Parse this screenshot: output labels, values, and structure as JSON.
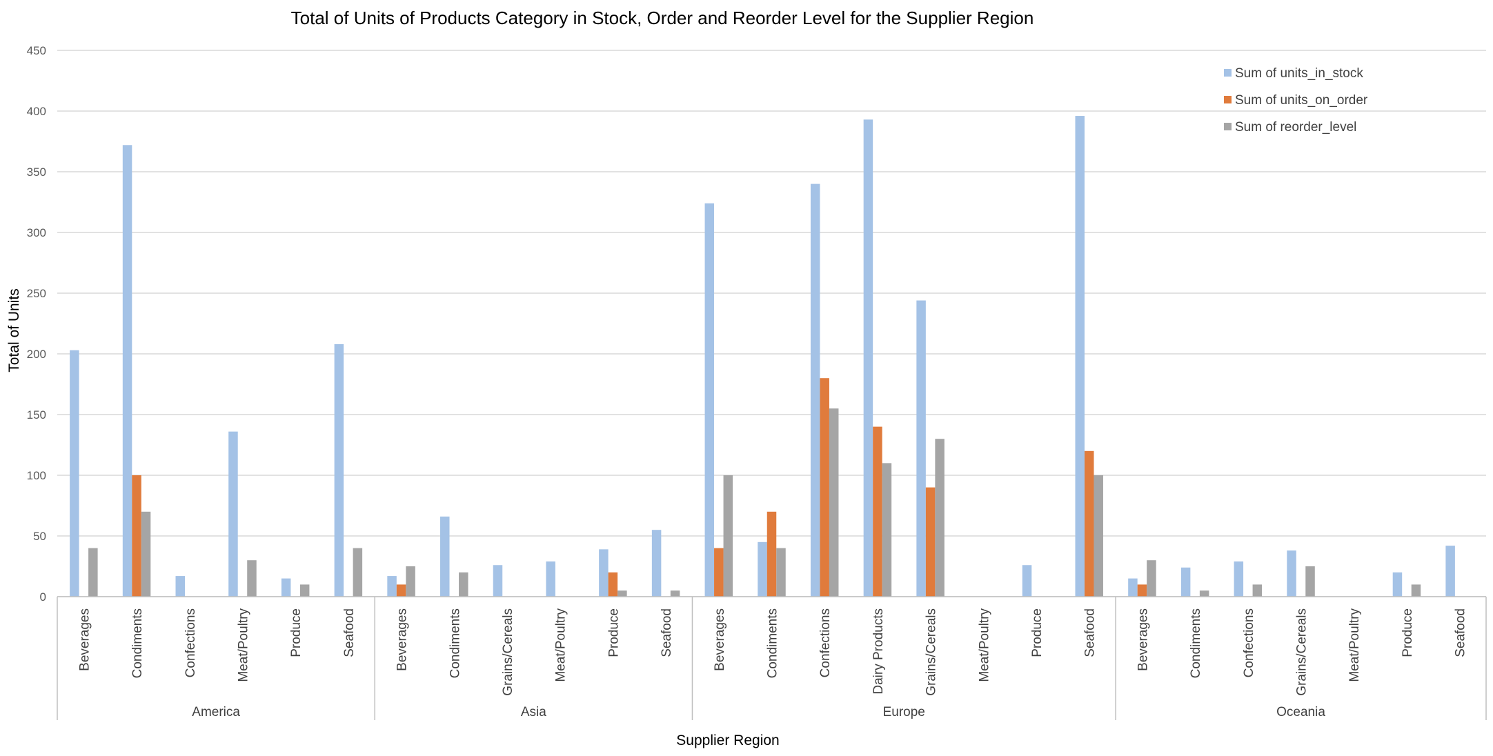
{
  "chart_data": {
    "type": "bar",
    "title": "Total of Units of Products Category in Stock, Order and Reorder Level for the Supplier Region",
    "xlabel": "Supplier Region",
    "ylabel": "Total of Units",
    "ylim": [
      0,
      450
    ],
    "yticks": [
      0,
      50,
      100,
      150,
      200,
      250,
      300,
      350,
      400,
      450
    ],
    "grid": true,
    "legend_position": "top-right",
    "groups": [
      {
        "name": "America",
        "categories": [
          "Beverages",
          "Condiments",
          "Confections",
          "Meat/Poultry",
          "Produce",
          "Seafood"
        ]
      },
      {
        "name": "Asia",
        "categories": [
          "Beverages",
          "Condiments",
          "Grains/Cereals",
          "Meat/Poultry",
          "Produce",
          "Seafood"
        ]
      },
      {
        "name": "Europe",
        "categories": [
          "Beverages",
          "Condiments",
          "Confections",
          "Dairy Products",
          "Grains/Cereals",
          "Meat/Poultry",
          "Produce",
          "Seafood"
        ]
      },
      {
        "name": "Oceania",
        "categories": [
          "Beverages",
          "Condiments",
          "Confections",
          "Grains/Cereals",
          "Meat/Poultry",
          "Produce",
          "Seafood"
        ]
      }
    ],
    "series": [
      {
        "name": "Sum of units_in_stock",
        "color": "#a4c2e6",
        "values": [
          203,
          372,
          17,
          136,
          15,
          208,
          17,
          66,
          26,
          29,
          39,
          55,
          324,
          45,
          340,
          393,
          244,
          0,
          26,
          396,
          15,
          24,
          29,
          38,
          0,
          20,
          42
        ]
      },
      {
        "name": "Sum of units_on_order",
        "color": "#e07b3c",
        "values": [
          0,
          100,
          0,
          0,
          0,
          0,
          10,
          0,
          0,
          0,
          20,
          0,
          40,
          70,
          180,
          140,
          90,
          0,
          0,
          120,
          10,
          0,
          0,
          0,
          0,
          0,
          0
        ]
      },
      {
        "name": "Sum of reorder_level",
        "color": "#a5a5a5",
        "values": [
          40,
          70,
          0,
          30,
          10,
          40,
          25,
          20,
          0,
          0,
          5,
          5,
          100,
          40,
          155,
          110,
          130,
          0,
          0,
          100,
          30,
          5,
          10,
          25,
          0,
          10,
          0
        ]
      }
    ]
  }
}
